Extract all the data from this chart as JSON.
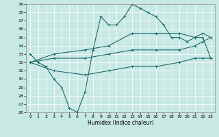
{
  "xlabel": "Humidex (Indice chaleur)",
  "xlim": [
    -0.5,
    23.5
  ],
  "ylim": [
    26,
    39
  ],
  "yticks": [
    26,
    27,
    28,
    29,
    30,
    31,
    32,
    33,
    34,
    35,
    36,
    37,
    38,
    39
  ],
  "xticks": [
    0,
    1,
    2,
    3,
    4,
    5,
    6,
    7,
    8,
    9,
    10,
    11,
    12,
    13,
    14,
    15,
    16,
    17,
    18,
    19,
    20,
    21,
    22,
    23
  ],
  "bg_color": "#c8e8e4",
  "grid_color": "#ffffff",
  "line_color": "#1a6b6b",
  "line1_x": [
    0,
    1,
    2,
    3,
    4,
    5,
    6,
    7,
    8,
    9,
    10,
    11,
    12,
    13,
    14,
    15,
    16,
    17,
    18,
    19,
    20,
    21,
    22,
    23
  ],
  "line1_y": [
    33.0,
    32.0,
    31.5,
    30.0,
    29.0,
    26.5,
    26.0,
    28.5,
    33.5,
    37.5,
    36.5,
    36.5,
    37.5,
    39.0,
    38.5,
    38.0,
    37.5,
    36.5,
    35.0,
    35.0,
    34.5,
    35.0,
    35.0,
    32.5
  ],
  "line2_x": [
    0,
    3,
    7,
    10,
    13,
    16,
    19,
    21,
    22,
    23
  ],
  "line2_y": [
    32.0,
    33.0,
    33.5,
    34.0,
    35.5,
    35.5,
    35.5,
    35.0,
    35.5,
    35.0
  ],
  "line3_x": [
    0,
    3,
    7,
    10,
    13,
    16,
    19,
    21,
    22,
    23
  ],
  "line3_y": [
    32.0,
    32.5,
    32.5,
    33.0,
    33.5,
    33.5,
    33.5,
    34.0,
    34.5,
    35.0
  ],
  "line4_x": [
    0,
    3,
    7,
    10,
    13,
    16,
    19,
    21,
    22,
    23
  ],
  "line4_y": [
    32.0,
    31.0,
    30.5,
    31.0,
    31.5,
    31.5,
    32.0,
    32.5,
    32.5,
    32.5
  ]
}
